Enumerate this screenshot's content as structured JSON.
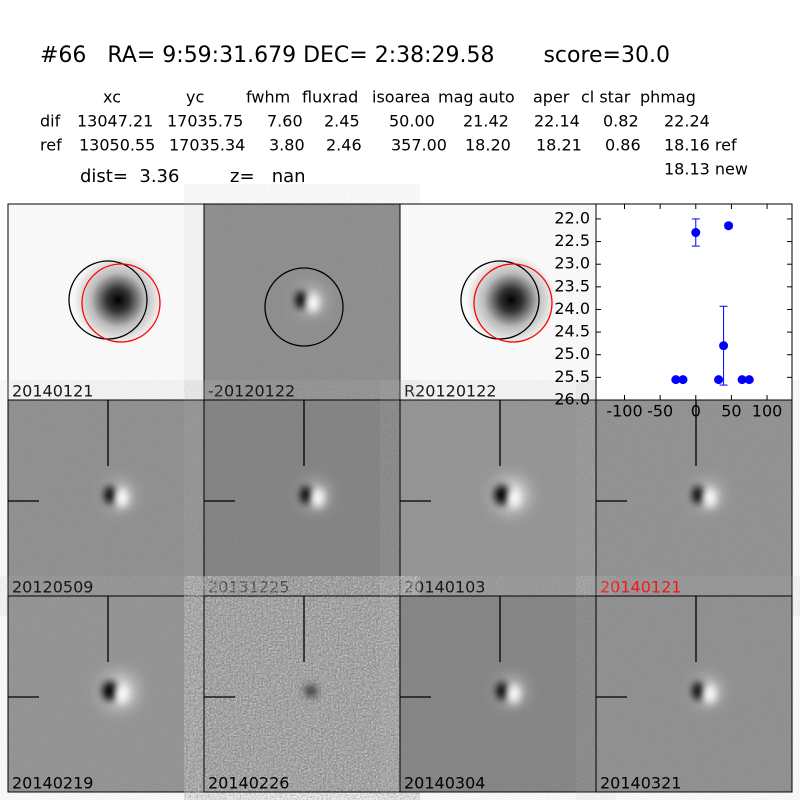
{
  "header": {
    "title": "#66   RA= 9:59:31.679 DEC= 2:38:29.58       score=30.0"
  },
  "table": {
    "columns": [
      "xc",
      "yc",
      "fwhm",
      "fluxrad",
      "isoarea",
      "mag auto",
      "aper",
      "cl star",
      "phmag"
    ],
    "rows": [
      [
        "dif",
        "13047.21",
        "17035.75",
        "7.60",
        "2.45",
        "50.00",
        "21.42",
        "22.14",
        "0.82",
        "22.24"
      ],
      [
        "ref",
        "13050.55",
        "17035.34",
        "3.80",
        "2.46",
        "357.00",
        "18.20",
        "18.21",
        "0.86",
        "18.16 ref"
      ]
    ],
    "extra": "18.13 new"
  },
  "distance": {
    "dist": "dist=  3.36",
    "z": "z=   nan"
  },
  "stamps": [
    {
      "label": "20140121"
    },
    {
      "label": "-20120122"
    },
    {
      "label": "R20120122"
    },
    {
      "label": "20120509"
    },
    {
      "label": "20131225"
    },
    {
      "label": "20140103"
    },
    {
      "label": "20140121",
      "label_color": "#ff0000"
    },
    {
      "label": "20140219"
    },
    {
      "label": "20140226"
    },
    {
      "label": "20140304"
    },
    {
      "label": "20140321"
    }
  ],
  "chart_data": {
    "type": "scatter",
    "x": [
      -28,
      -18,
      0,
      32,
      39,
      46,
      65,
      75
    ],
    "values": [
      25.55,
      25.55,
      22.3,
      25.55,
      24.8,
      22.15,
      25.55,
      25.55
    ],
    "errors": [
      0,
      0,
      0.3,
      0,
      0.87,
      0.05,
      0,
      0
    ],
    "color": "#0000ff",
    "xlim": [
      -140,
      135
    ],
    "ylim": [
      21.67,
      26.0
    ],
    "y_inverted": true,
    "xticks": [
      -100,
      -50,
      0,
      50,
      100
    ],
    "yticks": [
      {
        "value": 22.0,
        "label": "22.0"
      },
      {
        "value": 22.5,
        "label": "22.5"
      },
      {
        "value": 23.0,
        "label": "23.0"
      },
      {
        "value": 23.5,
        "label": "23.5"
      },
      {
        "value": 24.0,
        "label": "24.0"
      },
      {
        "value": 24.5,
        "label": "24.5"
      },
      {
        "value": 25.0,
        "label": "25.0"
      },
      {
        "value": 25.5,
        "label": "25.5"
      },
      {
        "value": 26.0,
        "label": "26.0"
      }
    ]
  }
}
